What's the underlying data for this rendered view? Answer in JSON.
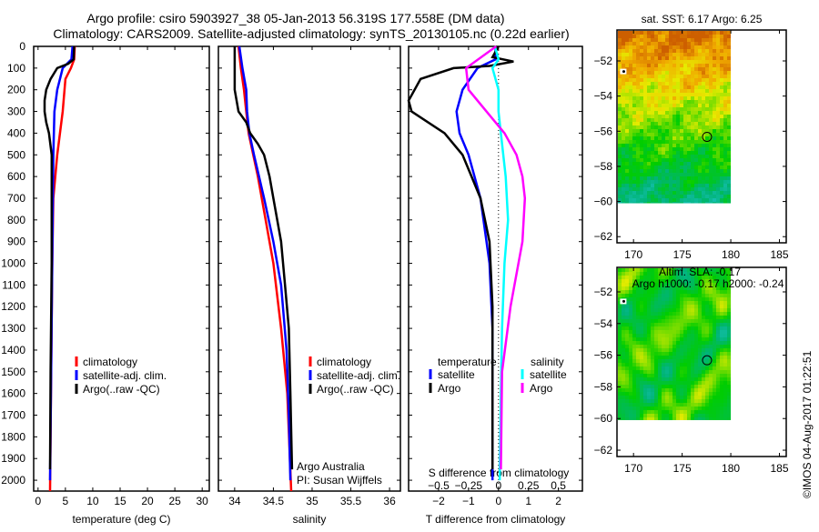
{
  "title_line1": "Argo profile: csiro 5903927_38 05-Jan-2013 56.319S 177.558E (DM data)",
  "title_line2": "Climatology: CARS2009. Satellite-adjusted climatology: synTS_20130105.nc (0.22d earlier)",
  "credit": "Argo Australia",
  "pi": "PI: Susan Wijffels",
  "copyright": "©IMOS 04-Aug-2017 01:22:51",
  "colors": {
    "climatology": "#ff0000",
    "satellite": "#0000ff",
    "argo": "#000000",
    "sal_satellite": "#00ffff",
    "sal_argo": "#ff00ff"
  },
  "chart_data": [
    {
      "type": "line",
      "xlabel": "temperature (deg C)",
      "ylabel": "",
      "xlim": [
        -0.8,
        31.3
      ],
      "ylim": [
        0,
        2050
      ],
      "y_reversed": true,
      "xticks": [
        0,
        5,
        10,
        15,
        20,
        25,
        30
      ],
      "yticks": [
        0,
        100,
        200,
        300,
        400,
        500,
        600,
        700,
        800,
        900,
        1000,
        1100,
        1200,
        1300,
        1400,
        1500,
        1600,
        1700,
        1800,
        1900,
        2000
      ],
      "legend": [
        "climatology",
        "satellite-adj. clim.",
        "Argo(..raw -QC)"
      ],
      "series": [
        {
          "name": "climatology",
          "color_key": "climatology",
          "depth": [
            0,
            60,
            100,
            150,
            300,
            500,
            700,
            1000,
            1500,
            2050
          ],
          "value": [
            6.7,
            6.6,
            6.0,
            5.0,
            4.5,
            3.5,
            2.8,
            2.6,
            2.4,
            2.2
          ]
        },
        {
          "name": "satellite-adj. clim.",
          "color_key": "satellite",
          "depth": [
            0,
            60,
            100,
            200,
            300,
            500,
            1000,
            1500,
            2000
          ],
          "value": [
            6.3,
            6.1,
            4.5,
            3.5,
            3.0,
            2.8,
            2.6,
            2.4,
            2.2
          ]
        },
        {
          "name": "Argo(..raw -QC)",
          "color_key": "argo",
          "depth": [
            0,
            60,
            80,
            100,
            150,
            200,
            250,
            300,
            350,
            400,
            500,
            1000,
            1500,
            1950
          ],
          "value": [
            6.6,
            6.5,
            5.5,
            3.5,
            2.3,
            1.5,
            1.2,
            1.2,
            1.5,
            2.0,
            2.5,
            2.5,
            2.3,
            2.2
          ]
        }
      ]
    },
    {
      "type": "line",
      "xlabel": "salinity",
      "xlim": [
        33.79,
        36.14
      ],
      "ylim": [
        0,
        2050
      ],
      "y_reversed": true,
      "xticks": [
        34,
        34.5,
        35,
        35.5,
        36
      ],
      "legend": [
        "climatology",
        "satellite-adj. clim.",
        "Argo(..raw -QC)"
      ],
      "series": [
        {
          "name": "climatology",
          "color_key": "climatology",
          "depth": [
            0,
            100,
            200,
            300,
            400,
            600,
            800,
            1000,
            1300,
            1600,
            2050
          ],
          "value": [
            34.05,
            34.08,
            34.12,
            34.15,
            34.18,
            34.3,
            34.4,
            34.5,
            34.6,
            34.68,
            34.73
          ]
        },
        {
          "name": "satellite-adj. clim.",
          "color_key": "satellite",
          "depth": [
            0,
            100,
            200,
            300,
            400,
            500,
            700,
            900,
            1100,
            1400,
            1700,
            2000
          ],
          "value": [
            34.06,
            34.1,
            34.15,
            34.16,
            34.19,
            34.25,
            34.38,
            34.5,
            34.6,
            34.67,
            34.7,
            34.72
          ]
        },
        {
          "name": "Argo(..raw -QC)",
          "color_key": "argo",
          "depth": [
            0,
            100,
            200,
            300,
            350,
            400,
            450,
            500,
            600,
            700,
            900,
            1100,
            1300,
            1600,
            1950
          ],
          "value": [
            34.0,
            34.0,
            34.0,
            34.05,
            34.15,
            34.2,
            34.3,
            34.38,
            34.45,
            34.5,
            34.6,
            34.65,
            34.7,
            34.72,
            34.74
          ]
        }
      ]
    },
    {
      "type": "line",
      "xlabel": "T difference from climatology",
      "x2label": "S difference from climatology",
      "xlim": [
        -3.0,
        2.8
      ],
      "x2lim": [
        -0.5,
        0.5
      ],
      "ylim": [
        0,
        2050
      ],
      "y_reversed": true,
      "xticks": [
        -2,
        -1,
        0,
        1,
        2
      ],
      "x2ticks": [
        -0.5,
        -0.25,
        0,
        0.25,
        0.5
      ],
      "legend_headers": [
        "temperature",
        "salinity"
      ],
      "legend": [
        "satellite",
        "Argo",
        "satellite",
        "Argo"
      ],
      "series": [
        {
          "name": "temperature satellite",
          "axis": "T",
          "color_key": "satellite",
          "depth": [
            0,
            60,
            100,
            200,
            300,
            400,
            500,
            700,
            1000,
            1300,
            2000
          ],
          "value": [
            -0.1,
            -0.1,
            -0.7,
            -1.2,
            -1.4,
            -1.3,
            -1.0,
            -0.6,
            -0.3,
            -0.2,
            -0.2
          ]
        },
        {
          "name": "temperature Argo",
          "axis": "T",
          "color_key": "argo",
          "depth": [
            0,
            50,
            70,
            90,
            100,
            150,
            250,
            300,
            400,
            500,
            600,
            700,
            900,
            1200,
            1950
          ],
          "value": [
            0,
            -0.2,
            0.5,
            -0.3,
            -1.5,
            -2.6,
            -3.0,
            -2.9,
            -1.8,
            -1.2,
            -0.9,
            -0.6,
            -0.3,
            -0.2,
            -0.2
          ]
        },
        {
          "name": "salinity satellite",
          "axis": "S",
          "color_key": "sal_satellite",
          "depth": [
            0,
            60,
            100,
            200,
            300,
            400,
            600,
            800,
            1000,
            1300,
            1600,
            2000
          ],
          "value": [
            -0.03,
            0.0,
            -0.05,
            0.0,
            0.0,
            0.02,
            0.06,
            0.08,
            0.05,
            0.03,
            0.02,
            0.01
          ]
        },
        {
          "name": "salinity Argo",
          "axis": "S",
          "color_key": "sal_argo",
          "depth": [
            0,
            100,
            200,
            300,
            400,
            500,
            600,
            700,
            900,
            1200,
            1500,
            1950
          ],
          "value": [
            -0.02,
            -0.27,
            -0.25,
            -0.1,
            0.05,
            0.15,
            0.2,
            0.22,
            0.2,
            0.1,
            0.03,
            0.02
          ]
        }
      ]
    },
    {
      "type": "heatmap",
      "title": "sat. SST: 6.17 Argo: 6.25",
      "xlim": [
        168.3,
        185.7
      ],
      "ylim": [
        -62.35,
        -50.24
      ],
      "xticks": [
        170,
        175,
        180,
        185
      ],
      "yticks": [
        -52,
        -54,
        -56,
        -58,
        -60,
        -62
      ],
      "data_extent": {
        "lon": [
          168.3,
          180
        ],
        "lat": [
          -60.1,
          -50.24
        ]
      },
      "profile_location": {
        "lon": 177.558,
        "lat": -56.319
      }
    },
    {
      "type": "heatmap",
      "title": "Altim. SLA: -0.17",
      "subtitle": "Argo h1000: -0.17 h2000: -0.24",
      "xlim": [
        168.3,
        185.7
      ],
      "ylim": [
        -62.4,
        -50.45
      ],
      "xticks": [
        170,
        175,
        180,
        185
      ],
      "yticks": [
        -52,
        -54,
        -56,
        -58,
        -60,
        -62
      ],
      "data_extent": {
        "lon": [
          168.3,
          180
        ],
        "lat": [
          -60.1,
          -50.45
        ]
      },
      "profile_location": {
        "lon": 177.558,
        "lat": -56.319
      }
    }
  ]
}
